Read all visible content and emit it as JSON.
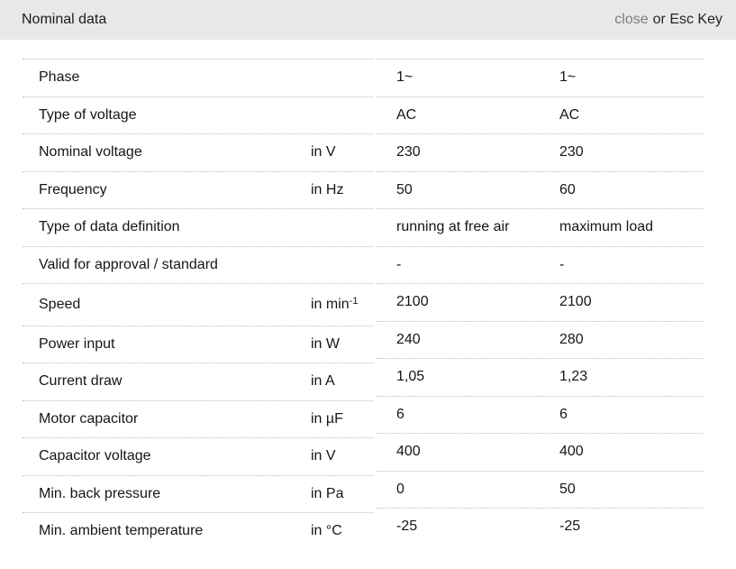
{
  "header": {
    "title": "Nominal data",
    "close_label": "close",
    "esc_hint": "or Esc Key"
  },
  "colors": {
    "header_bg": "#e8e8e8",
    "close_link": "#7f7f7f",
    "text": "#161616",
    "divider": "#bdbdbd"
  },
  "table": {
    "rows": [
      {
        "label": "Phase",
        "unit": "",
        "value1": "1~",
        "value2": "1~"
      },
      {
        "label": "Type of voltage",
        "unit": "",
        "value1": "AC",
        "value2": "AC"
      },
      {
        "label": "Nominal voltage",
        "unit": "in V",
        "value1": "230",
        "value2": "230"
      },
      {
        "label": "Frequency",
        "unit": "in Hz",
        "value1": "50",
        "value2": "60"
      },
      {
        "label": "Type of data definition",
        "unit": "",
        "value1": "running at free air",
        "value2": "maximum load"
      },
      {
        "label": "Valid for approval / standard",
        "unit": "",
        "value1": "-",
        "value2": "-"
      },
      {
        "label": "Speed",
        "unit": "in min",
        "unit_sup": "-1",
        "value1": "2100",
        "value2": "2100"
      },
      {
        "label": "Power input",
        "unit": "in W",
        "value1": "240",
        "value2": "280"
      },
      {
        "label": "Current draw",
        "unit": "in A",
        "value1": "1,05",
        "value2": "1,23"
      },
      {
        "label": "Motor capacitor",
        "unit": "in µF",
        "value1": "6",
        "value2": "6"
      },
      {
        "label": "Capacitor voltage",
        "unit": "in V",
        "value1": "400",
        "value2": "400"
      },
      {
        "label": "Min. back pressure",
        "unit": "in Pa",
        "value1": "0",
        "value2": "50"
      },
      {
        "label": "Min. ambient temperature",
        "unit": "in °C",
        "value1": "-25",
        "value2": "-25"
      }
    ]
  }
}
